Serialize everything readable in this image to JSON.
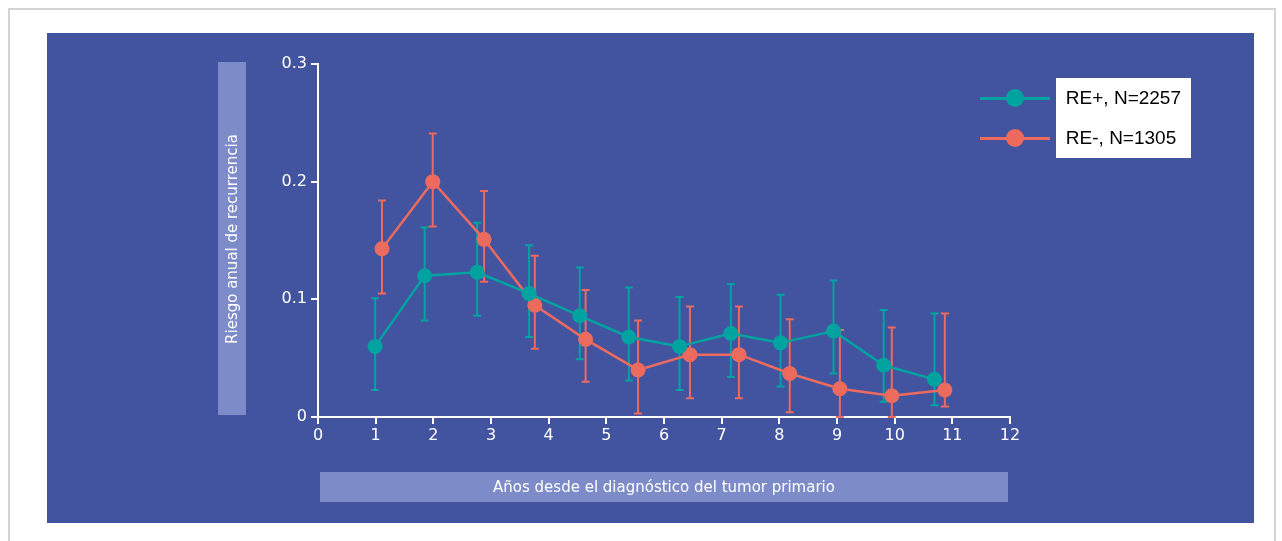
{
  "chart_data": {
    "type": "line",
    "xlabel": "Años desde el diagnóstico del tumor primario",
    "ylabel": "Riesgo anual de recurrencia",
    "xlim": [
      0,
      12
    ],
    "xticks": [
      0,
      1,
      2,
      3,
      4,
      5,
      6,
      7,
      8,
      9,
      10,
      11,
      12
    ],
    "ylim": [
      0,
      0.3
    ],
    "yticks": [
      0,
      0.1,
      0.2,
      0.3
    ],
    "grid": false,
    "legend": "top right",
    "marker": "circle",
    "line_style": "solid",
    "series": [
      {
        "name": "RE+, N=2257",
        "color": "#00a3a0",
        "x": [
          0.99,
          1.85,
          2.76,
          3.66,
          4.54,
          5.39,
          6.27,
          7.16,
          8.02,
          8.94,
          9.81,
          10.69
        ],
        "values": [
          0.06,
          0.12,
          0.123,
          0.105,
          0.086,
          0.068,
          0.06,
          0.071,
          0.063,
          0.073,
          0.044,
          0.032
        ],
        "errors": [
          [
            0.023,
            0.101
          ],
          [
            0.082,
            0.161
          ],
          [
            0.086,
            0.165
          ],
          [
            0.068,
            0.146
          ],
          [
            0.049,
            0.127
          ],
          [
            0.031,
            0.11
          ],
          [
            0.023,
            0.102
          ],
          [
            0.034,
            0.113
          ],
          [
            0.026,
            0.104
          ],
          [
            0.037,
            0.116
          ],
          [
            0.013,
            0.091
          ],
          [
            0.01,
            0.088
          ]
        ]
      },
      {
        "name": "RE-, N=1305",
        "color": "#ec6a5e",
        "x": [
          1.11,
          1.99,
          2.88,
          3.76,
          4.64,
          5.55,
          6.45,
          7.3,
          8.18,
          9.05,
          9.95,
          10.87
        ],
        "values": [
          0.143,
          0.2,
          0.151,
          0.095,
          0.066,
          0.04,
          0.053,
          0.053,
          0.037,
          0.024,
          0.018,
          0.023
        ],
        "errors": [
          [
            0.105,
            0.184
          ],
          [
            0.162,
            0.241
          ],
          [
            0.115,
            0.192
          ],
          [
            0.058,
            0.137
          ],
          [
            0.03,
            0.108
          ],
          [
            0.003,
            0.082
          ],
          [
            0.016,
            0.094
          ],
          [
            0.016,
            0.094
          ],
          [
            0.004,
            0.083
          ],
          [
            0,
            0.074
          ],
          [
            0,
            0.076
          ],
          [
            0.009,
            0.088
          ]
        ]
      }
    ]
  }
}
